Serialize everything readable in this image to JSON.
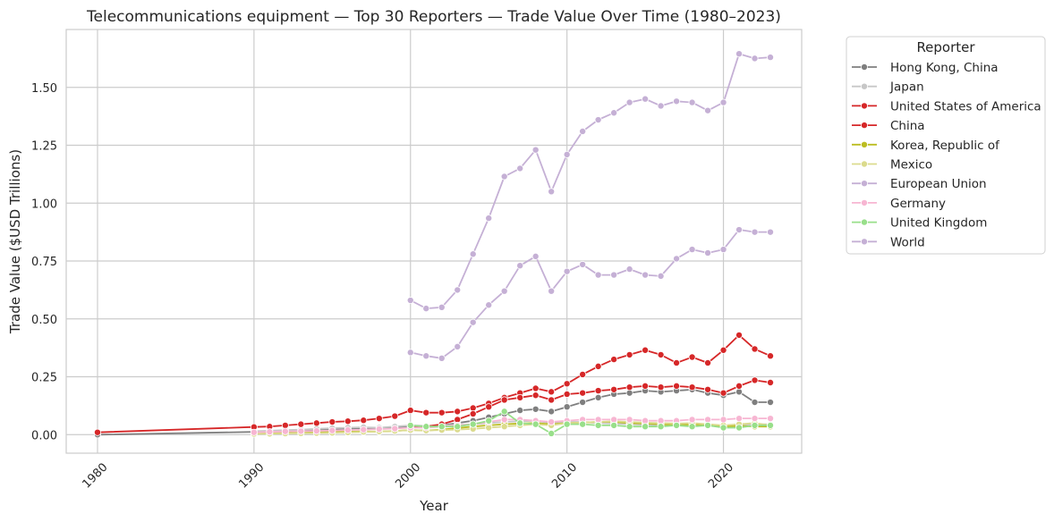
{
  "chart_data": {
    "type": "line",
    "title": "Telecommunications equipment — Top 30 Reporters — Trade Value Over Time (1980–2023)",
    "xlabel": "Year",
    "ylabel": "Trade Value ($USD Trillions)",
    "xlim": [
      1978,
      2025
    ],
    "ylim": [
      -0.08,
      1.75
    ],
    "xticks": [
      1980,
      1990,
      2000,
      2010,
      2020
    ],
    "yticks": [
      0.0,
      0.25,
      0.5,
      0.75,
      1.0,
      1.25,
      1.5
    ],
    "ytick_labels": [
      "0.00",
      "0.25",
      "0.50",
      "0.75",
      "1.00",
      "1.25",
      "1.50"
    ],
    "legend_title": "Reporter",
    "legend_position": "outside-right",
    "grid": true,
    "series": [
      {
        "name": "Hong Kong, China",
        "color": "#7f7f7f",
        "x": [
          1980,
          1990,
          1991,
          1992,
          1993,
          1994,
          1995,
          1996,
          1997,
          1998,
          1999,
          2000,
          2001,
          2002,
          2003,
          2004,
          2005,
          2006,
          2007,
          2008,
          2009,
          2010,
          2011,
          2012,
          2013,
          2014,
          2015,
          2016,
          2017,
          2018,
          2019,
          2020,
          2021,
          2022,
          2023
        ],
        "y": [
          0.0,
          0.012,
          0.014,
          0.016,
          0.018,
          0.02,
          0.022,
          0.025,
          0.027,
          0.03,
          0.032,
          0.035,
          0.035,
          0.04,
          0.05,
          0.06,
          0.075,
          0.09,
          0.105,
          0.11,
          0.1,
          0.12,
          0.14,
          0.16,
          0.175,
          0.18,
          0.19,
          0.185,
          0.19,
          0.195,
          0.18,
          0.17,
          0.185,
          0.14,
          0.14
        ]
      },
      {
        "name": "Japan",
        "color": "#c7c7c7",
        "x": [
          1990,
          1991,
          1992,
          1993,
          1994,
          1995,
          1996,
          1997,
          1998,
          1999,
          2000,
          2001,
          2002,
          2003,
          2004,
          2005,
          2006,
          2007,
          2008,
          2009,
          2010,
          2011,
          2012,
          2013,
          2014,
          2015,
          2016,
          2017,
          2018,
          2019,
          2020,
          2021,
          2022,
          2023
        ],
        "y": [
          0.015,
          0.017,
          0.02,
          0.022,
          0.025,
          0.028,
          0.03,
          0.032,
          0.03,
          0.035,
          0.04,
          0.038,
          0.04,
          0.042,
          0.045,
          0.05,
          0.055,
          0.058,
          0.06,
          0.05,
          0.055,
          0.055,
          0.05,
          0.048,
          0.045,
          0.042,
          0.04,
          0.042,
          0.045,
          0.04,
          0.035,
          0.04,
          0.045,
          0.045
        ]
      },
      {
        "name": "United States of America",
        "color": "#d62728",
        "x": [
          1980,
          1990,
          1991,
          1992,
          1993,
          1994,
          1995,
          1996,
          1997,
          1998,
          1999,
          2000,
          2001,
          2002,
          2003,
          2004,
          2005,
          2006,
          2007,
          2008,
          2009,
          2010,
          2011,
          2012,
          2013,
          2014,
          2015,
          2016,
          2017,
          2018,
          2019,
          2020,
          2021,
          2022,
          2023
        ],
        "y": [
          0.01,
          0.033,
          0.035,
          0.04,
          0.045,
          0.05,
          0.055,
          0.058,
          0.062,
          0.07,
          0.08,
          0.105,
          0.095,
          0.095,
          0.1,
          0.115,
          0.135,
          0.16,
          0.18,
          0.2,
          0.185,
          0.22,
          0.26,
          0.295,
          0.325,
          0.345,
          0.365,
          0.345,
          0.31,
          0.335,
          0.31,
          0.365,
          0.43,
          0.37,
          0.34
        ]
      },
      {
        "name": "China",
        "color": "#d62728",
        "x": [
          2000,
          2001,
          2002,
          2003,
          2004,
          2005,
          2006,
          2007,
          2008,
          2009,
          2010,
          2011,
          2012,
          2013,
          2014,
          2015,
          2016,
          2017,
          2018,
          2019,
          2020,
          2021,
          2022,
          2023
        ],
        "y": [
          0.03,
          0.035,
          0.045,
          0.065,
          0.09,
          0.12,
          0.15,
          0.16,
          0.17,
          0.15,
          0.175,
          0.18,
          0.19,
          0.195,
          0.205,
          0.21,
          0.205,
          0.21,
          0.205,
          0.195,
          0.18,
          0.21,
          0.235,
          0.225
        ]
      },
      {
        "name": "Korea, Republic of",
        "color": "#bcbd22",
        "x": [
          1990,
          1991,
          1992,
          1993,
          1994,
          1995,
          1996,
          1997,
          1998,
          1999,
          2000,
          2001,
          2002,
          2003,
          2004,
          2005,
          2006,
          2007,
          2008,
          2009,
          2010,
          2011,
          2012,
          2013,
          2014,
          2015,
          2016,
          2017,
          2018,
          2019,
          2020,
          2021,
          2022,
          2023
        ],
        "y": [
          0.005,
          0.006,
          0.007,
          0.008,
          0.01,
          0.012,
          0.013,
          0.014,
          0.013,
          0.016,
          0.02,
          0.018,
          0.022,
          0.028,
          0.035,
          0.04,
          0.045,
          0.048,
          0.05,
          0.045,
          0.05,
          0.052,
          0.055,
          0.055,
          0.05,
          0.048,
          0.045,
          0.04,
          0.045,
          0.04,
          0.035,
          0.038,
          0.035,
          0.035
        ]
      },
      {
        "name": "Mexico",
        "color": "#dbdb8d",
        "x": [
          1990,
          1991,
          1992,
          1993,
          1994,
          1995,
          1996,
          1997,
          1998,
          1999,
          2000,
          2001,
          2002,
          2003,
          2004,
          2005,
          2006,
          2007,
          2008,
          2009,
          2010,
          2011,
          2012,
          2013,
          2014,
          2015,
          2016,
          2017,
          2018,
          2019,
          2020,
          2021,
          2022,
          2023
        ],
        "y": [
          0.003,
          0.004,
          0.005,
          0.006,
          0.007,
          0.008,
          0.01,
          0.012,
          0.014,
          0.016,
          0.02,
          0.018,
          0.02,
          0.022,
          0.025,
          0.03,
          0.035,
          0.04,
          0.045,
          0.04,
          0.05,
          0.052,
          0.055,
          0.058,
          0.055,
          0.052,
          0.05,
          0.048,
          0.05,
          0.045,
          0.04,
          0.045,
          0.05,
          0.04
        ]
      },
      {
        "name": "European Union",
        "color": "#c5b0d5",
        "x": [
          2000,
          2001,
          2002,
          2003,
          2004,
          2005,
          2006,
          2007,
          2008,
          2009,
          2010,
          2011,
          2012,
          2013,
          2014,
          2015,
          2016,
          2017,
          2018,
          2019,
          2020,
          2021,
          2022,
          2023
        ],
        "y": [
          0.355,
          0.34,
          0.33,
          0.38,
          0.485,
          0.56,
          0.62,
          0.73,
          0.77,
          0.62,
          0.705,
          0.735,
          0.69,
          0.69,
          0.715,
          0.69,
          0.685,
          0.76,
          0.8,
          0.785,
          0.8,
          0.885,
          0.875,
          0.875
        ]
      },
      {
        "name": "Germany",
        "color": "#f7b6d2",
        "x": [
          1990,
          1991,
          1992,
          1993,
          1994,
          1995,
          1996,
          1997,
          1998,
          1999,
          2000,
          2001,
          2002,
          2003,
          2004,
          2005,
          2006,
          2007,
          2008,
          2009,
          2010,
          2011,
          2012,
          2013,
          2014,
          2015,
          2016,
          2017,
          2018,
          2019,
          2020,
          2021,
          2022,
          2023
        ],
        "y": [
          0.01,
          0.012,
          0.014,
          0.015,
          0.016,
          0.018,
          0.02,
          0.022,
          0.024,
          0.026,
          0.03,
          0.03,
          0.035,
          0.04,
          0.045,
          0.055,
          0.065,
          0.065,
          0.06,
          0.055,
          0.06,
          0.065,
          0.065,
          0.065,
          0.065,
          0.06,
          0.06,
          0.06,
          0.065,
          0.065,
          0.065,
          0.07,
          0.07,
          0.07
        ]
      },
      {
        "name": "United Kingdom",
        "color": "#98df8a",
        "x": [
          2000,
          2001,
          2002,
          2003,
          2004,
          2005,
          2006,
          2007,
          2008,
          2009,
          2010,
          2011,
          2012,
          2013,
          2014,
          2015,
          2016,
          2017,
          2018,
          2019,
          2020,
          2021,
          2022,
          2023
        ],
        "y": [
          0.04,
          0.035,
          0.035,
          0.035,
          0.045,
          0.06,
          0.1,
          0.05,
          0.045,
          0.005,
          0.045,
          0.045,
          0.04,
          0.04,
          0.035,
          0.035,
          0.035,
          0.04,
          0.035,
          0.04,
          0.03,
          0.03,
          0.04,
          0.04
        ]
      },
      {
        "name": "World",
        "color": "#c5b0d5",
        "x": [
          2000,
          2001,
          2002,
          2003,
          2004,
          2005,
          2006,
          2007,
          2008,
          2009,
          2010,
          2011,
          2012,
          2013,
          2014,
          2015,
          2016,
          2017,
          2018,
          2019,
          2020,
          2021,
          2022,
          2023
        ],
        "y": [
          0.58,
          0.545,
          0.55,
          0.625,
          0.78,
          0.935,
          1.115,
          1.15,
          1.23,
          1.05,
          1.21,
          1.31,
          1.36,
          1.39,
          1.435,
          1.45,
          1.42,
          1.44,
          1.435,
          1.4,
          1.435,
          1.645,
          1.625,
          1.63
        ]
      }
    ]
  }
}
